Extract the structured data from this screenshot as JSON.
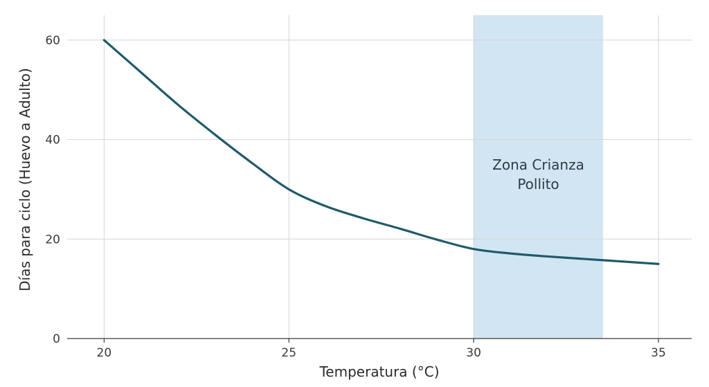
{
  "chart_data": {
    "type": "line",
    "title": "",
    "xlabel": "Temperatura (°C)",
    "ylabel": "Días para ciclo (Huevo a Adulto)",
    "xlim": [
      19,
      35.9
    ],
    "ylim": [
      0,
      65
    ],
    "xticks": [
      20,
      25,
      30,
      35
    ],
    "yticks": [
      0,
      20,
      40,
      60
    ],
    "grid": true,
    "series": [
      {
        "name": "Días para ciclo",
        "color": "#1f5a6b",
        "x": [
          20,
          21,
          22,
          23,
          24,
          25,
          26,
          27,
          28,
          29,
          30,
          31,
          32,
          33,
          34,
          35
        ],
        "y": [
          60,
          53.5,
          47,
          41,
          35.3,
          30,
          26.6,
          24.2,
          22.1,
          19.9,
          18,
          17.1,
          16.5,
          16,
          15.5,
          15
        ]
      }
    ],
    "shaded_region": {
      "x_start": 30,
      "x_end": 33.5,
      "color": "#d2e5f3",
      "label_line1": "Zona Crianza",
      "label_line2": "Pollito"
    }
  }
}
